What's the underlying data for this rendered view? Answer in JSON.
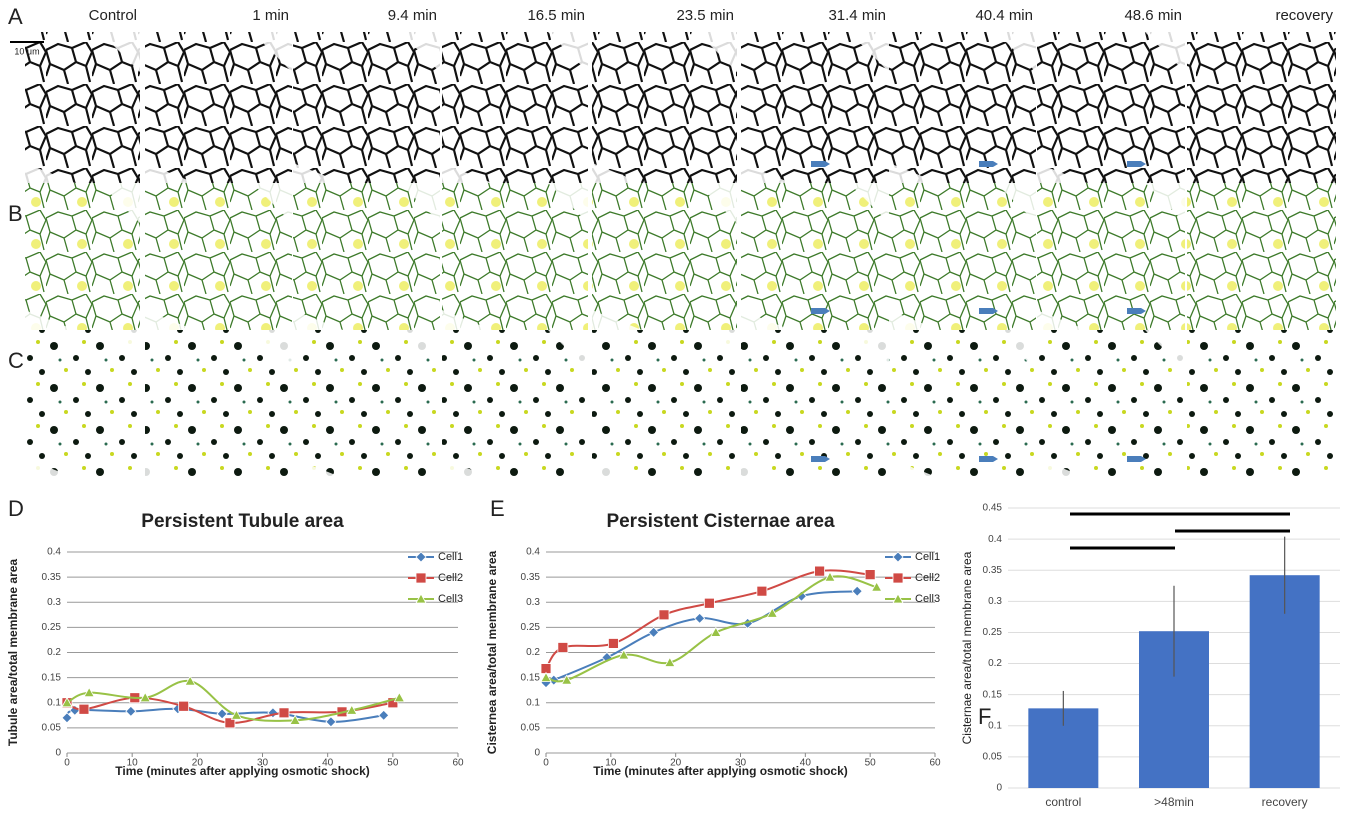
{
  "panels": {
    "letters": [
      "A",
      "B",
      "C"
    ],
    "scale_bar": "10 μm",
    "timepoints": [
      "Control",
      "1 min",
      "9.4 min",
      "16.5 min",
      "23.5 min",
      "31.4 min",
      "40.4 min",
      "48.6 min",
      "recovery"
    ]
  },
  "chart_data": [
    {
      "type": "line",
      "label": "D",
      "title": "Persistent Tubule area",
      "x_label": "Time (minutes after applying osmotic shock)",
      "y_label": "Tubule area/total membrane area",
      "xlim": [
        0,
        60
      ],
      "xticks": [
        0,
        10,
        20,
        30,
        40,
        50,
        60
      ],
      "ylim": [
        0,
        0.4
      ],
      "yticks": [
        0,
        0.05,
        0.1,
        0.15,
        0.2,
        0.25,
        0.3,
        0.35,
        0.4
      ],
      "grid": true,
      "series": [
        {
          "name": "Cell1",
          "color": "#4a7ebb",
          "marker": "diamond",
          "x": [
            0,
            1.2,
            9.8,
            17,
            23.8,
            31.6,
            40.5,
            48.6
          ],
          "values": [
            0.07,
            0.085,
            0.083,
            0.088,
            0.078,
            0.08,
            0.062,
            0.075
          ]
        },
        {
          "name": "Cell2",
          "color": "#d04a45",
          "marker": "square",
          "x": [
            0,
            2.6,
            10.4,
            17.9,
            25,
            33.3,
            42.2,
            50
          ],
          "values": [
            0.1,
            0.087,
            0.11,
            0.093,
            0.06,
            0.08,
            0.082,
            0.1
          ]
        },
        {
          "name": "Cell3",
          "color": "#98c246",
          "marker": "triangle",
          "x": [
            0,
            3.4,
            12,
            18.9,
            26,
            35,
            43.7,
            51
          ],
          "values": [
            0.1,
            0.12,
            0.11,
            0.143,
            0.075,
            0.065,
            0.085,
            0.11
          ]
        }
      ]
    },
    {
      "type": "line",
      "label": "E",
      "title": "Persistent Cisternae area",
      "x_label": "Time (minutes after applying osmotic shock)",
      "y_label": "Cisternea area/total membrane area",
      "xlim": [
        0,
        60
      ],
      "xticks": [
        0,
        10,
        20,
        30,
        40,
        50,
        60
      ],
      "ylim": [
        0,
        0.4
      ],
      "yticks": [
        0,
        0.05,
        0.1,
        0.15,
        0.2,
        0.25,
        0.3,
        0.35,
        0.4
      ],
      "grid": true,
      "series": [
        {
          "name": "Cell1",
          "color": "#4a7ebb",
          "marker": "diamond",
          "x": [
            0,
            1.2,
            9.4,
            16.6,
            23.7,
            31.1,
            39.4,
            48
          ],
          "values": [
            0.14,
            0.145,
            0.19,
            0.24,
            0.268,
            0.258,
            0.312,
            0.322
          ]
        },
        {
          "name": "Cell2",
          "color": "#d04a45",
          "marker": "square",
          "x": [
            0,
            2.6,
            10.4,
            18.2,
            25.2,
            33.3,
            42.2,
            50
          ],
          "values": [
            0.168,
            0.21,
            0.218,
            0.275,
            0.298,
            0.322,
            0.362,
            0.355
          ]
        },
        {
          "name": "Cell3",
          "color": "#98c246",
          "marker": "triangle",
          "x": [
            0,
            3.2,
            12,
            19.1,
            26.2,
            34.9,
            43.8,
            51
          ],
          "values": [
            0.15,
            0.145,
            0.195,
            0.18,
            0.24,
            0.278,
            0.35,
            0.33
          ]
        }
      ]
    },
    {
      "type": "bar",
      "label": "F",
      "y_label": "Cisternae area/total membrane area",
      "categories": [
        "control",
        ">48min",
        "recovery"
      ],
      "values": [
        0.128,
        0.252,
        0.342
      ],
      "errors": [
        0.028,
        0.073,
        0.062
      ],
      "color": "#4472c4",
      "ylim": [
        0,
        0.45
      ],
      "yticks": [
        0,
        0.05,
        0.1,
        0.15,
        0.2,
        0.25,
        0.3,
        0.35,
        0.4,
        0.45
      ],
      "grid": true
    }
  ]
}
